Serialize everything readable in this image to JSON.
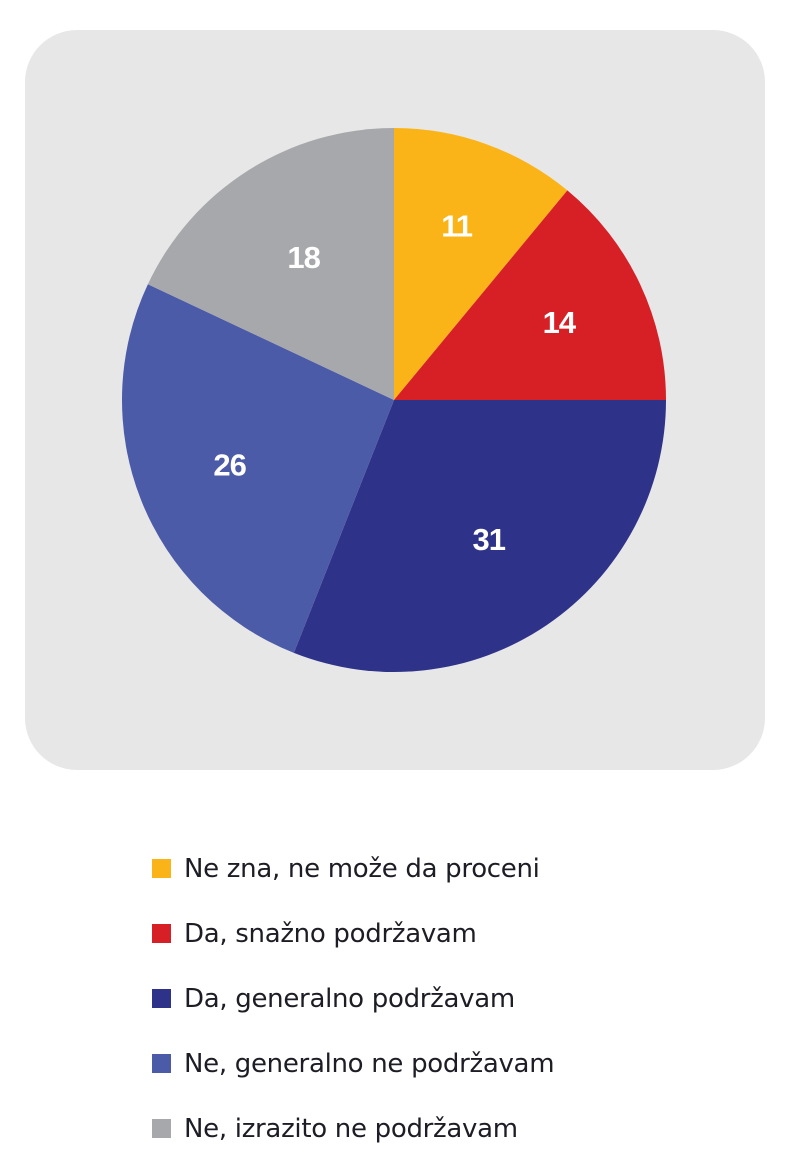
{
  "chart_data": {
    "type": "pie",
    "title": "",
    "start_angle": "12 o'clock",
    "direction": "clockwise",
    "unit": "%",
    "slices": [
      {
        "label": "Ne zna, ne može da proceni",
        "value": 11,
        "color": "#fbb418"
      },
      {
        "label": "Da, snažno podržavam",
        "value": 14,
        "color": "#d71f26"
      },
      {
        "label": "Da, generalno podržavam",
        "value": 31,
        "color": "#2e3389"
      },
      {
        "label": "Ne, generalno ne podržavam",
        "value": 26,
        "color": "#4b5ba8"
      },
      {
        "label": "Ne, izrazito ne podržavam",
        "value": 18,
        "color": "#a7a8ab"
      }
    ],
    "legend_position": "bottom",
    "data_labels": [
      "11",
      "14",
      "31",
      "26",
      "18"
    ]
  },
  "legend": {
    "items": [
      {
        "label": "Ne zna, ne može da proceni",
        "color": "#fbb418"
      },
      {
        "label": "Da, snažno podržavam",
        "color": "#d71f26"
      },
      {
        "label": "Da, generalno podržavam",
        "color": "#2e3389"
      },
      {
        "label": "Ne, generalno ne podržavam",
        "color": "#4b5ba8"
      },
      {
        "label": "Ne, izrazito ne podržavam",
        "color": "#a7a8ab"
      }
    ]
  },
  "colors": {
    "panel_background": "#e7e7e8",
    "label_text": "#ffffff",
    "legend_text": "#1d1d25"
  }
}
